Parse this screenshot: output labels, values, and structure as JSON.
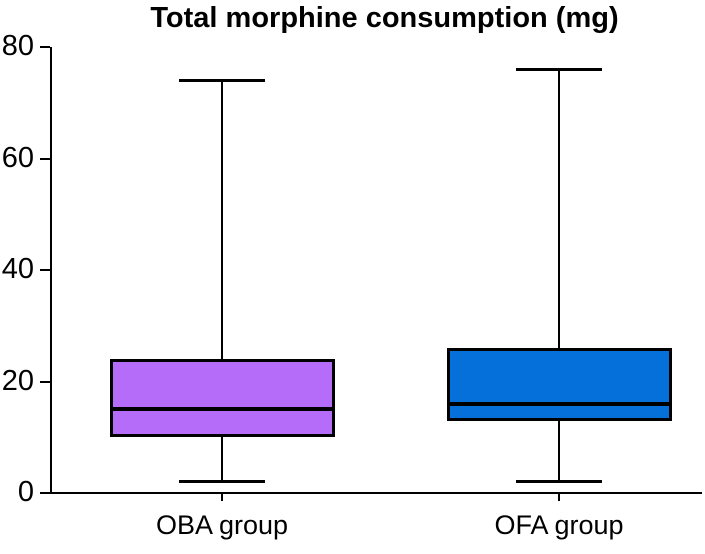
{
  "chart_data": {
    "type": "box",
    "title": "Total morphine consumption (mg)",
    "categories": [
      "OBA group",
      "OFA group"
    ],
    "series": [
      {
        "name": "OBA group",
        "min": 2,
        "q1": 10,
        "median": 15,
        "q3": 24,
        "max": 74,
        "color": "#b56cf8"
      },
      {
        "name": "OFA group",
        "min": 2,
        "q1": 13,
        "median": 16,
        "q3": 26,
        "max": 76,
        "color": "#0570d9"
      }
    ],
    "ylim": [
      0,
      80
    ],
    "yticks": [
      80,
      60,
      40,
      20,
      0
    ],
    "xlabel": "",
    "ylabel": "",
    "grid": false,
    "legend": "none",
    "axis_color": "#000000",
    "background": "#ffffff"
  }
}
